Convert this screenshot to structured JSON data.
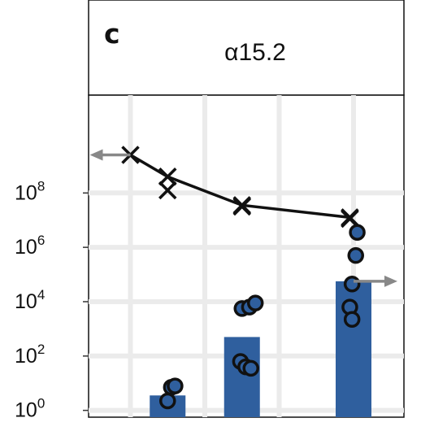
{
  "panel_label": "c",
  "chart_data": {
    "type": "bar",
    "title": "α15.2",
    "xlabel": "",
    "ylabel": "",
    "y_scale": "log10",
    "ylim_log10": [
      -0.25,
      11.6
    ],
    "y_ticks": [
      {
        "base": "10",
        "exp": "0",
        "value_log10": 0
      },
      {
        "base": "10",
        "exp": "2",
        "value_log10": 2
      },
      {
        "base": "10",
        "exp": "4",
        "value_log10": 4
      },
      {
        "base": "10",
        "exp": "6",
        "value_log10": 6
      },
      {
        "base": "10",
        "exp": "8",
        "value_log10": 8
      }
    ],
    "x_ticks": [
      1,
      2,
      3,
      4
    ],
    "x_tick_labels": [],
    "xlim": [
      0.5,
      4.5
    ],
    "grid": true,
    "bars": {
      "color": "#2f5f9e",
      "items": [
        {
          "x": 1.5,
          "value_log10": 0.55
        },
        {
          "x": 2.5,
          "value_log10": 2.7
        },
        {
          "x": 4.0,
          "value_log10": 4.75
        }
      ]
    },
    "points": {
      "fill": "#2f5f9e",
      "stroke": "#111111",
      "items": [
        {
          "x": 1.55,
          "value_log10": 0.85
        },
        {
          "x": 1.6,
          "value_log10": 0.9
        },
        {
          "x": 1.5,
          "value_log10": 0.35
        },
        {
          "x": 2.5,
          "value_log10": 3.75
        },
        {
          "x": 2.6,
          "value_log10": 3.8
        },
        {
          "x": 2.68,
          "value_log10": 3.95
        },
        {
          "x": 2.48,
          "value_log10": 1.8
        },
        {
          "x": 2.55,
          "value_log10": 1.6
        },
        {
          "x": 2.62,
          "value_log10": 1.55
        },
        {
          "x": 4.05,
          "value_log10": 6.55
        },
        {
          "x": 4.03,
          "value_log10": 5.7
        },
        {
          "x": 3.98,
          "value_log10": 4.65
        },
        {
          "x": 3.95,
          "value_log10": 3.8
        },
        {
          "x": 3.98,
          "value_log10": 3.35
        }
      ]
    },
    "line_series": {
      "color": "#111111",
      "marker": "x",
      "points": [
        {
          "x": 1.0,
          "value_log10": 9.4
        },
        {
          "x": 1.5,
          "value_log10": 8.6
        },
        {
          "x": 2.5,
          "value_log10": 7.55
        },
        {
          "x": 3.95,
          "value_log10": 7.1
        }
      ],
      "extra_markers": [
        {
          "x": 1.5,
          "value_log10": 8.1
        },
        {
          "x": 2.5,
          "value_log10": 7.5
        },
        {
          "x": 3.95,
          "value_log10": 7.05
        }
      ]
    },
    "arrows": [
      {
        "color": "#888888",
        "direction": "left",
        "x": 1.0,
        "value_log10": 9.4
      },
      {
        "color": "#888888",
        "direction": "right",
        "x": 4.0,
        "value_log10": 4.75
      }
    ]
  }
}
